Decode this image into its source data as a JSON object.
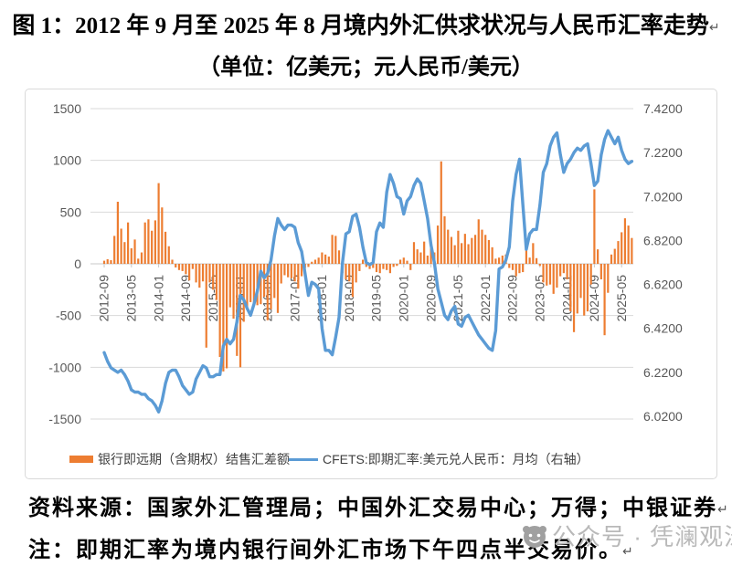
{
  "document": {
    "title": "图 1：2012 年 9 月至 2025 年 8 月境内外汇供求状况与人民币汇率走势",
    "subtitle": "（单位：亿美元；元人民币/美元）",
    "source_line": "资料来源：国家外汇管理局；中国外汇交易中心；万得；中银证券",
    "note_line": "注：即期汇率为境内银行间外汇市场下午四点半交易价。",
    "paragraph_mark": "↵"
  },
  "watermark": {
    "text": "公众号 · 凭澜观涛",
    "icon": "wechat-official-account-avatar",
    "color": "#b9b9b9"
  },
  "chart_data": {
    "type": "combo-bar-line",
    "grid": true,
    "legend_position": "bottom",
    "x": {
      "freq": "monthly",
      "start": "2012-09",
      "end": "2025-08",
      "tick_labels": [
        "2012-09",
        "2013-05",
        "2014-01",
        "2014-09",
        "2015-05",
        "2016-01",
        "2016-09",
        "2017-05",
        "2018-01",
        "2018-09",
        "2019-05",
        "2020-01",
        "2020-09",
        "2021-05",
        "2022-01",
        "2022-09",
        "2023-05",
        "2024-01",
        "2024-09",
        "2025-05"
      ],
      "tick_interval_months": 8
    },
    "left_axis": {
      "max": 1500,
      "min": -1500,
      "step": 500,
      "tick_labels": [
        "1500",
        "1000",
        "500",
        "0",
        "-500",
        "-1000",
        "-1500"
      ]
    },
    "right_axis": {
      "max": 7.42,
      "min": 6.02,
      "step": 0.2,
      "tick_labels": [
        "7.4200",
        "7.2200",
        "7.0200",
        "6.8200",
        "6.6200",
        "6.4200",
        "6.2200",
        "6.0200"
      ]
    },
    "series": [
      {
        "name": "银行即远期（含期权）结售汇差额",
        "type": "bar",
        "axis": "left",
        "color": "#ED7D31",
        "unit": "亿美元",
        "values": [
          30,
          45,
          35,
          270,
          600,
          340,
          210,
          400,
          150,
          235,
          50,
          110,
          400,
          430,
          320,
          420,
          780,
          545,
          310,
          170,
          40,
          -35,
          -60,
          -70,
          -100,
          -160,
          -50,
          -180,
          -230,
          -170,
          -810,
          -180,
          -250,
          -350,
          -900,
          -1040,
          -1010,
          -420,
          -530,
          -890,
          -1000,
          -560,
          -420,
          -370,
          -400,
          -400,
          -390,
          -320,
          -545,
          -440,
          -330,
          -475,
          -190,
          -110,
          -130,
          -140,
          -170,
          -240,
          -120,
          -40,
          -30,
          20,
          40,
          60,
          110,
          90,
          70,
          280,
          270,
          130,
          -90,
          -150,
          -170,
          -320,
          -180,
          -70,
          40,
          -30,
          -50,
          -40,
          -80,
          -90,
          -50,
          -60,
          -90,
          -30,
          -20,
          40,
          60,
          30,
          -60,
          210,
          140,
          110,
          215,
          80,
          160,
          110,
          370,
          990,
          460,
          330,
          260,
          180,
          320,
          200,
          290,
          190,
          250,
          280,
          430,
          330,
          280,
          230,
          160,
          50,
          60,
          80,
          90,
          -40,
          -60,
          -120,
          -90,
          -80,
          220,
          60,
          200,
          55,
          -20,
          -180,
          -210,
          -200,
          -290,
          -230,
          -120,
          -90,
          -150,
          -460,
          -660,
          -480,
          -330,
          -500,
          -460,
          -200,
          720,
          140,
          -150,
          -690,
          -280,
          90,
          145,
          220,
          305,
          440,
          370,
          250
        ]
      },
      {
        "name": "CFETS:即期汇率:美元兑人民币：月均（右轴）",
        "type": "line",
        "axis": "right",
        "color": "#5B9BD5",
        "unit": "元人民币/美元",
        "values": [
          6.31,
          6.27,
          6.24,
          6.23,
          6.22,
          6.23,
          6.21,
          6.18,
          6.14,
          6.13,
          6.13,
          6.12,
          6.12,
          6.1,
          6.09,
          6.07,
          6.04,
          6.09,
          6.17,
          6.22,
          6.23,
          6.23,
          6.2,
          6.16,
          6.14,
          6.12,
          6.13,
          6.19,
          6.22,
          6.25,
          6.24,
          6.2,
          6.2,
          6.21,
          6.21,
          6.34,
          6.37,
          6.35,
          6.37,
          6.45,
          6.57,
          6.55,
          6.51,
          6.48,
          6.53,
          6.59,
          6.68,
          6.65,
          6.67,
          6.73,
          6.84,
          6.92,
          6.89,
          6.87,
          6.89,
          6.89,
          6.88,
          6.81,
          6.77,
          6.67,
          6.57,
          6.63,
          6.62,
          6.6,
          6.42,
          6.32,
          6.32,
          6.3,
          6.38,
          6.47,
          6.72,
          6.85,
          6.86,
          6.93,
          6.94,
          6.88,
          6.79,
          6.72,
          6.71,
          6.72,
          6.86,
          6.9,
          6.88,
          7.04,
          7.12,
          7.08,
          7.02,
          7.01,
          6.94,
          7.0,
          7.02,
          7.07,
          7.1,
          7.08,
          7.0,
          6.92,
          6.8,
          6.72,
          6.6,
          6.54,
          6.48,
          6.46,
          6.5,
          6.52,
          6.44,
          6.43,
          6.47,
          6.48,
          6.45,
          6.42,
          6.39,
          6.37,
          6.35,
          6.33,
          6.32,
          6.41,
          6.69,
          6.7,
          6.73,
          6.79,
          7.0,
          7.12,
          7.19,
          6.98,
          6.78,
          6.85,
          6.87,
          6.87,
          6.98,
          7.13,
          7.17,
          7.25,
          7.29,
          7.31,
          7.21,
          7.13,
          7.17,
          7.19,
          7.22,
          7.24,
          7.23,
          7.25,
          7.26,
          7.17,
          7.07,
          7.09,
          7.21,
          7.28,
          7.32,
          7.29,
          7.26,
          7.29,
          7.23,
          7.19,
          7.17,
          7.18
        ]
      }
    ],
    "style": {
      "gridline_color": "#D9D9D9",
      "axis_color": "#C8C8C8",
      "tick_label_color": "#595959"
    }
  }
}
